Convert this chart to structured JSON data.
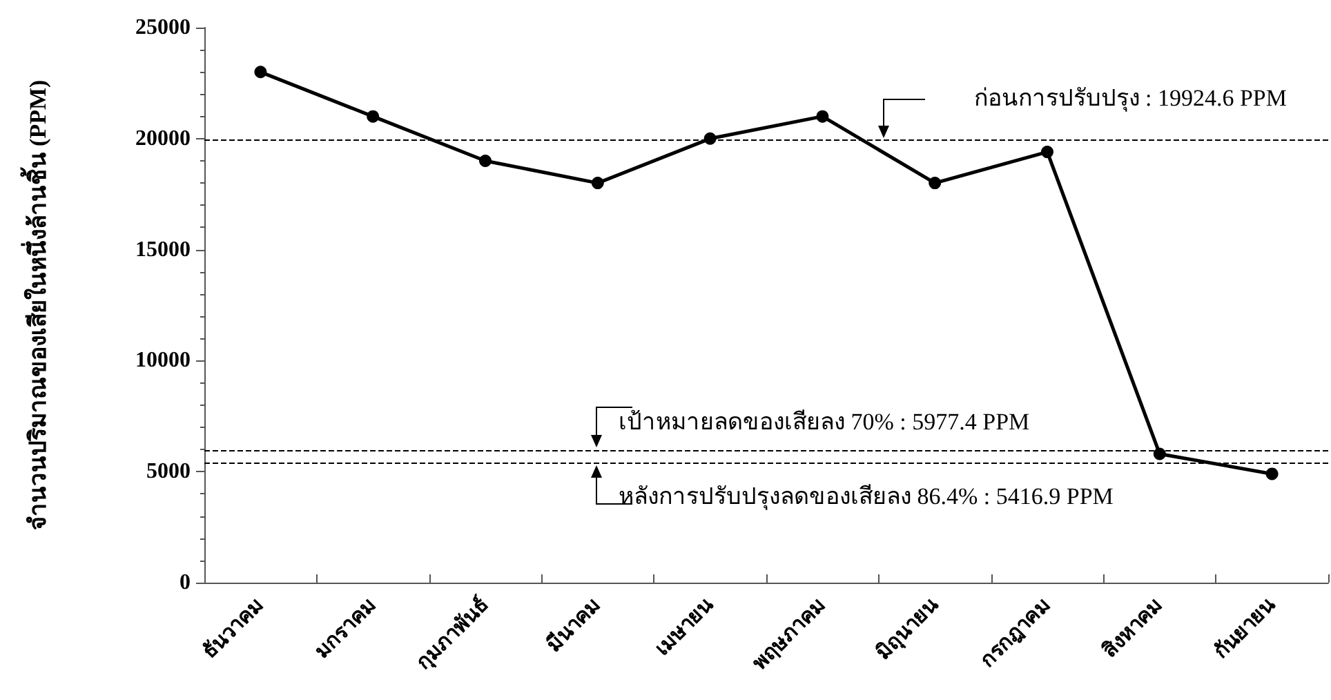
{
  "chart_data": {
    "type": "line",
    "ylabel": "จำนวนปริมาณของเสียในหนึ่งล้านชิ้น (PPM)",
    "categories": [
      "ธันวาคม",
      "มกราคม",
      "กุมภาพันธ์",
      "มีนาคม",
      "เมษายน",
      "พฤษภาคม",
      "มิถุนายน",
      "กรกฎาคม",
      "สิงหาคม",
      "กันยายน"
    ],
    "series": [
      {
        "color": "#000000",
        "values": [
          23000,
          21000,
          19000,
          18000,
          20000,
          21000,
          18000,
          19400,
          5800,
          4900
        ]
      }
    ],
    "ylim": [
      0,
      25000
    ],
    "yticks": [
      0,
      5000,
      10000,
      15000,
      20000,
      25000
    ],
    "ref_lines": [
      {
        "axis": "y",
        "value": 19924.6,
        "label": "ก่อนการปรับปรุง : 19924.6 PPM",
        "color": "#000000",
        "line_style": "dashed"
      },
      {
        "axis": "y",
        "value": 5977.4,
        "label": "เป้าหมายลดของเสียลง 70% : 5977.4 PPM",
        "color": "#000000",
        "line_style": "dashed"
      },
      {
        "axis": "y",
        "value": 5416.9,
        "label": "หลังการปรับปรุงลดของเสียลง 86.4% : 5416.9 PPM",
        "color": "#000000",
        "line_style": "dashed"
      }
    ],
    "grid": false,
    "marker": "circle",
    "line_style": "solid"
  }
}
